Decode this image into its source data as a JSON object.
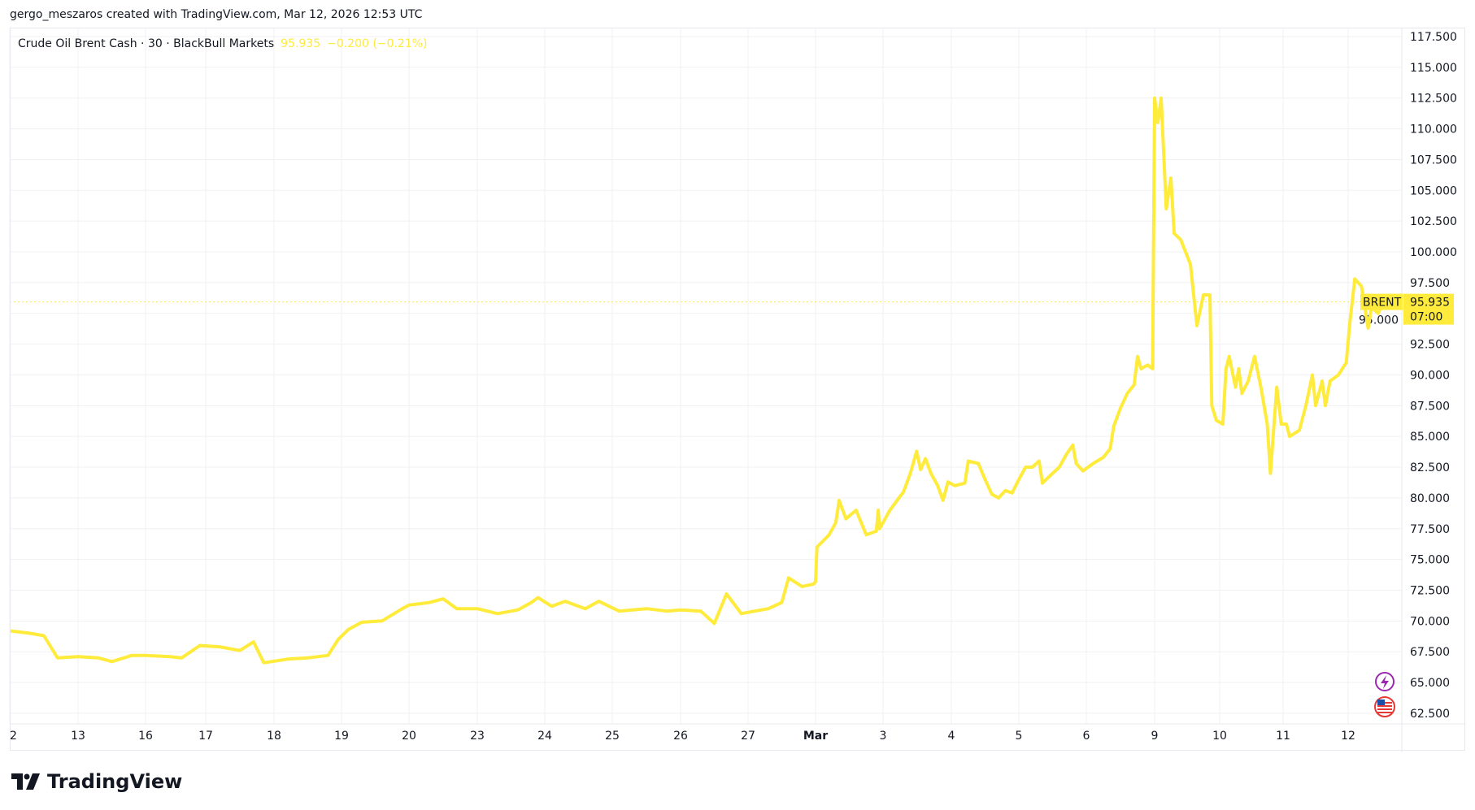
{
  "header": {
    "credit": "gergo_meszaros created with TradingView.com, Mar 12, 2026 12:53 UTC"
  },
  "legend": {
    "symbol": "Crude Oil Brent Cash · 30 · BlackBull Markets",
    "last": "95.935",
    "change": "−0.200 (−0.21%)"
  },
  "price_tag": {
    "ticker": "BRENT",
    "price": "95.935",
    "countdown": "07:00"
  },
  "brand": {
    "name": "TradingView"
  },
  "icons": [
    "lightning-icon",
    "us-flag-icon"
  ],
  "colors": {
    "line": "#ffeb3b",
    "tag": "#ffeb3b",
    "grid": "#f0f1f4"
  },
  "chart_data": {
    "type": "line",
    "title": "",
    "grid": true,
    "ylim": [
      62.5,
      117.5
    ],
    "y_ticks": [
      "62.500",
      "65.000",
      "67.500",
      "70.000",
      "72.500",
      "75.000",
      "77.500",
      "80.000",
      "82.500",
      "85.000",
      "87.500",
      "90.000",
      "92.500",
      "95.000",
      "97.500",
      "100.000",
      "102.500",
      "105.000",
      "107.500",
      "110.000",
      "112.500",
      "115.000",
      "117.500"
    ],
    "x_ticks": [
      "2",
      "13",
      "16",
      "17",
      "18",
      "19",
      "20",
      "23",
      "24",
      "25",
      "26",
      "27",
      "Mar",
      "3",
      "4",
      "5",
      "6",
      "9",
      "10",
      "11",
      "12"
    ],
    "last_price": 95.935,
    "series": [
      {
        "points_by_day": [
          {
            "date": "2026-02-12",
            "p": [
              [
                0,
                69.2
              ],
              [
                7.2,
                69.0
              ],
              [
                12,
                68.8
              ],
              [
                16.8,
                67.0
              ]
            ]
          },
          {
            "date": "2026-02-13",
            "p": [
              [
                0,
                67.1
              ],
              [
                7.2,
                67.0
              ],
              [
                12,
                66.7
              ],
              [
                19.2,
                67.2
              ]
            ]
          },
          {
            "date": "2026-02-16",
            "p": [
              [
                0,
                67.2
              ],
              [
                9.6,
                67.1
              ],
              [
                14.4,
                67.0
              ],
              [
                21.6,
                68.0
              ]
            ]
          },
          {
            "date": "2026-02-17",
            "p": [
              [
                4.8,
                67.9
              ],
              [
                12,
                67.6
              ],
              [
                16.8,
                68.3
              ],
              [
                20.4,
                66.6
              ]
            ]
          },
          {
            "date": "2026-02-18",
            "p": [
              [
                4.8,
                66.9
              ],
              [
                12,
                67.0
              ],
              [
                19.2,
                67.2
              ],
              [
                22.8,
                68.5
              ]
            ]
          },
          {
            "date": "2026-02-19",
            "p": [
              [
                2.4,
                69.3
              ],
              [
                7.2,
                69.9
              ],
              [
                14.4,
                70.0
              ],
              [
                21.6,
                71.0
              ]
            ]
          },
          {
            "date": "2026-02-20",
            "p": [
              [
                0,
                71.3
              ],
              [
                7.2,
                71.5
              ],
              [
                12,
                71.8
              ],
              [
                16.8,
                71.0
              ]
            ]
          },
          {
            "date": "2026-02-23",
            "p": [
              [
                0,
                71.0
              ],
              [
                7.2,
                70.6
              ],
              [
                14.4,
                70.9
              ],
              [
                19.2,
                71.5
              ],
              [
                21.6,
                71.9
              ]
            ]
          },
          {
            "date": "2026-02-24",
            "p": [
              [
                2.4,
                71.2
              ],
              [
                7.2,
                71.6
              ],
              [
                14.4,
                71.0
              ],
              [
                19.2,
                71.6
              ]
            ]
          },
          {
            "date": "2026-02-25",
            "p": [
              [
                2.4,
                70.8
              ],
              [
                12,
                71.0
              ],
              [
                19.2,
                70.8
              ]
            ]
          },
          {
            "date": "2026-02-26",
            "p": [
              [
                0,
                70.9
              ],
              [
                7.2,
                70.8
              ],
              [
                12,
                69.8
              ],
              [
                16.3,
                72.2
              ],
              [
                21.6,
                70.6
              ]
            ]
          },
          {
            "date": "2026-02-27",
            "p": [
              [
                0,
                70.7
              ],
              [
                7.2,
                71.0
              ],
              [
                12,
                71.5
              ],
              [
                14.4,
                73.5
              ],
              [
                19.2,
                72.8
              ],
              [
                23.3,
                73.0
              ]
            ]
          },
          {
            "date": "2026-03-02",
            "p": [
              [
                0,
                73.2
              ],
              [
                0.5,
                76.0
              ],
              [
                4.8,
                77.0
              ],
              [
                7.2,
                78.0
              ],
              [
                8.4,
                79.8
              ],
              [
                10.8,
                78.3
              ],
              [
                14.4,
                79.0
              ],
              [
                18,
                77.0
              ],
              [
                21.6,
                77.3
              ],
              [
                22.3,
                79.0
              ],
              [
                22.8,
                77.5
              ]
            ]
          },
          {
            "date": "2026-03-03",
            "p": [
              [
                2.4,
                79.0
              ],
              [
                7.2,
                80.5
              ],
              [
                9.6,
                82.0
              ],
              [
                11.8,
                83.8
              ],
              [
                13.2,
                82.3
              ],
              [
                14.9,
                83.2
              ],
              [
                16.8,
                82.0
              ],
              [
                19.2,
                81.0
              ],
              [
                21.1,
                79.8
              ],
              [
                22.8,
                81.3
              ]
            ]
          },
          {
            "date": "2026-03-04",
            "p": [
              [
                1.2,
                81.0
              ],
              [
                4.8,
                81.2
              ],
              [
                6,
                83.0
              ],
              [
                9.6,
                82.8
              ],
              [
                12,
                81.5
              ],
              [
                14.4,
                80.3
              ],
              [
                16.8,
                80.0
              ],
              [
                19.2,
                80.6
              ],
              [
                21.6,
                80.4
              ]
            ]
          },
          {
            "date": "2026-03-05",
            "p": [
              [
                0,
                81.5
              ],
              [
                2.4,
                82.5
              ],
              [
                4.8,
                82.5
              ],
              [
                7.2,
                83.0
              ],
              [
                8.4,
                81.2
              ],
              [
                12,
                82.0
              ],
              [
                14.4,
                82.5
              ],
              [
                16.8,
                83.5
              ],
              [
                19.2,
                84.3
              ],
              [
                20.4,
                82.8
              ],
              [
                22.8,
                82.2
              ]
            ]
          },
          {
            "date": "2026-03-06",
            "p": [
              [
                2.4,
                82.8
              ],
              [
                6,
                83.3
              ],
              [
                8.4,
                84.0
              ],
              [
                9.6,
                85.8
              ],
              [
                12,
                87.3
              ],
              [
                14.4,
                88.5
              ],
              [
                16.8,
                89.2
              ],
              [
                18,
                91.5
              ],
              [
                19.2,
                90.5
              ],
              [
                21.6,
                90.8
              ],
              [
                23.3,
                90.5
              ]
            ]
          },
          {
            "date": "2026-03-09",
            "p": [
              [
                0,
                112.5
              ],
              [
                1.2,
                110.5
              ],
              [
                2.4,
                112.5
              ],
              [
                4.3,
                103.5
              ],
              [
                6,
                106.0
              ],
              [
                7.2,
                101.5
              ],
              [
                9.6,
                101.0
              ],
              [
                13.2,
                99.0
              ],
              [
                15.6,
                94.0
              ],
              [
                18,
                96.5
              ],
              [
                20.4,
                96.5
              ],
              [
                21.1,
                87.5
              ],
              [
                22.8,
                86.3
              ]
            ]
          },
          {
            "date": "2026-03-10",
            "p": [
              [
                1.2,
                86.0
              ],
              [
                2.4,
                90.5
              ],
              [
                3.6,
                91.5
              ],
              [
                6,
                89.0
              ],
              [
                7.2,
                90.5
              ],
              [
                8.4,
                88.5
              ],
              [
                10.8,
                89.5
              ],
              [
                13.2,
                91.5
              ],
              [
                15.6,
                89.0
              ],
              [
                18,
                86.0
              ],
              [
                19.2,
                82.0
              ],
              [
                21.6,
                89.0
              ],
              [
                23.3,
                86.0
              ]
            ]
          },
          {
            "date": "2026-03-11",
            "p": [
              [
                1.2,
                86.0
              ],
              [
                2.4,
                85.0
              ],
              [
                6,
                85.5
              ],
              [
                8.4,
                87.5
              ],
              [
                10.8,
                90.0
              ],
              [
                12,
                87.5
              ],
              [
                14.4,
                89.5
              ],
              [
                15.6,
                87.5
              ],
              [
                17.3,
                89.5
              ],
              [
                20.4,
                90.0
              ],
              [
                23.3,
                91.0
              ]
            ]
          },
          {
            "date": "2026-03-12",
            "p": [
              [
                0.5,
                94.0
              ],
              [
                2.4,
                97.8
              ],
              [
                4.8,
                97.2
              ],
              [
                7.2,
                93.8
              ],
              [
                8.4,
                95.5
              ],
              [
                10.8,
                95.0
              ],
              [
                12.7,
                95.935
              ]
            ]
          }
        ]
      }
    ]
  }
}
